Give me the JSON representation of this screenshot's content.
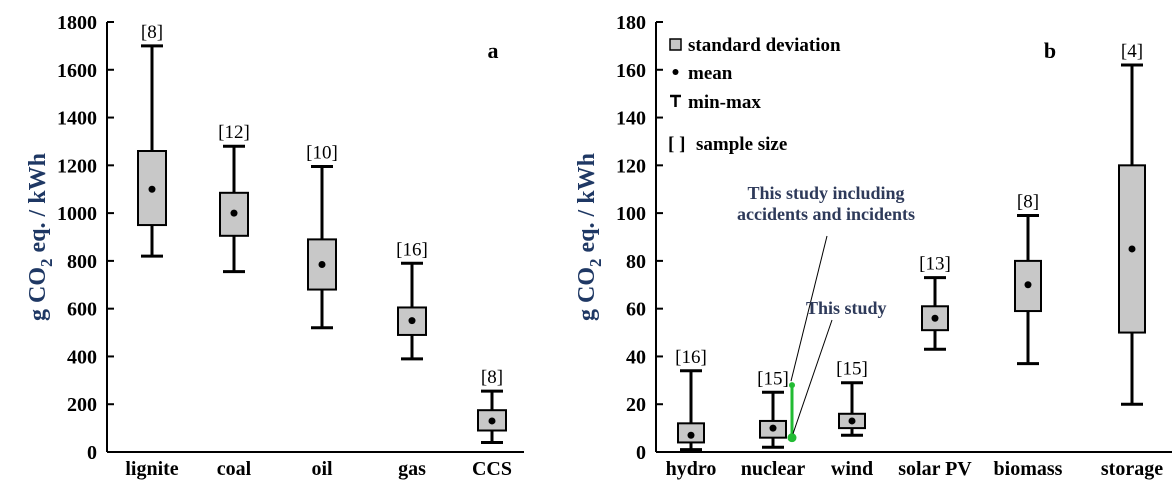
{
  "chart_data": [
    {
      "type": "box",
      "panel_label": "a",
      "ylabel": "g CO₂ eq. / kWh",
      "ylabel_main": "g CO",
      "ylabel_sub": "2",
      "ylabel_rest": " eq. / kWh",
      "ylim": [
        0,
        1800
      ],
      "yticks": [
        "0",
        "200",
        "400",
        "600",
        "800",
        "1000",
        "1200",
        "1400",
        "1600",
        "1800"
      ],
      "categories": [
        "lignite",
        "coal",
        "oil",
        "gas",
        "CCS"
      ],
      "boxes": [
        {
          "min": 820,
          "q1": 950,
          "mean": 1100,
          "q3": 1260,
          "max": 1700,
          "n": "[8]"
        },
        {
          "min": 755,
          "q1": 905,
          "mean": 1000,
          "q3": 1085,
          "max": 1280,
          "n": "[12]"
        },
        {
          "min": 520,
          "q1": 680,
          "mean": 785,
          "q3": 890,
          "max": 1195,
          "n": "[10]"
        },
        {
          "min": 390,
          "q1": 490,
          "mean": 550,
          "q3": 605,
          "max": 790,
          "n": "[16]"
        },
        {
          "min": 40,
          "q1": 90,
          "mean": 130,
          "q3": 175,
          "max": 255,
          "n": "[8]"
        }
      ]
    },
    {
      "type": "box",
      "panel_label": "b",
      "ylabel": "g CO₂ eq. / kWh",
      "ylabel_main": "g CO",
      "ylabel_sub": "2",
      "ylabel_rest": " eq. / kWh",
      "ylim": [
        0,
        180
      ],
      "yticks": [
        "0",
        "20",
        "40",
        "60",
        "80",
        "100",
        "120",
        "140",
        "160",
        "180"
      ],
      "categories": [
        "hydro",
        "nuclear",
        "wind",
        "solar PV",
        "biomass",
        "storage"
      ],
      "boxes": [
        {
          "min": 1,
          "q1": 4,
          "mean": 7,
          "q3": 12,
          "max": 34,
          "n": "[16]"
        },
        {
          "min": 2,
          "q1": 6,
          "mean": 10,
          "q3": 13,
          "max": 25,
          "n": "[15]"
        },
        {
          "min": 7,
          "q1": 10,
          "mean": 13,
          "q3": 16,
          "max": 29,
          "n": "[15]"
        },
        {
          "min": 43,
          "q1": 51,
          "mean": 56,
          "q3": 61,
          "max": 73,
          "n": "[13]"
        },
        {
          "min": 37,
          "q1": 59,
          "mean": 70,
          "q3": 80,
          "max": 99,
          "n": "[8]"
        },
        {
          "min": 20,
          "q1": 50,
          "mean": 85,
          "q3": 120,
          "max": 162,
          "n": "[4]"
        }
      ],
      "this_study": {
        "category": "nuclear",
        "value": 6,
        "with_accidents_max": 28,
        "color": "#22bb33",
        "label_this_study": "This study",
        "label_with_accidents_line1": "This study including",
        "label_with_accidents_line2": "accidents and incidents"
      },
      "legend": {
        "items": [
          {
            "symbol": "box",
            "label": "standard deviation"
          },
          {
            "symbol": "dot",
            "label": "mean"
          },
          {
            "symbol": "T",
            "label": "min-max"
          },
          {
            "symbol": "[ ]",
            "label": "sample size"
          }
        ]
      }
    }
  ],
  "colors": {
    "box_fill": "#c8c8c8",
    "ylabel": "#1f3864",
    "annotation": "#2e3a5a",
    "green": "#22bb33"
  }
}
